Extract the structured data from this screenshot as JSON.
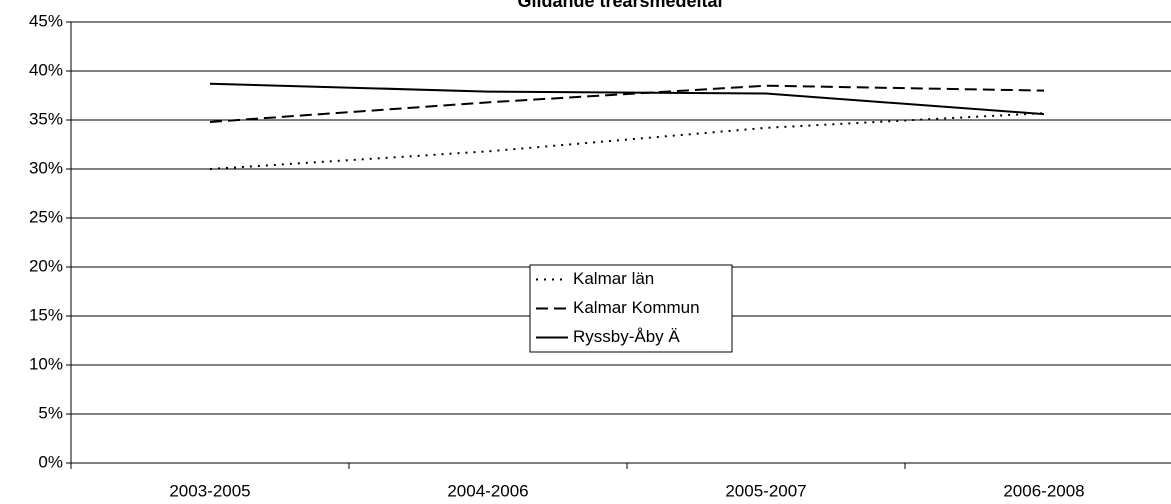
{
  "chart_data": {
    "type": "line",
    "title": "Glidande treårsmedeltal",
    "categories": [
      "2003-2005",
      "2004-2006",
      "2005-2007",
      "2006-2008"
    ],
    "series": [
      {
        "name": "Kalmar län",
        "color": "#000000",
        "dash": "dotted",
        "values": [
          30.0,
          31.8,
          34.2,
          35.7
        ]
      },
      {
        "name": "Kalmar Kommun",
        "color": "#000000",
        "dash": "dashed",
        "values": [
          34.8,
          36.8,
          38.5,
          38.0
        ]
      },
      {
        "name": "Ryssby-Åby  Ä",
        "color": "#000000",
        "dash": "solid",
        "values": [
          38.7,
          37.9,
          37.7,
          35.6
        ]
      }
    ],
    "ylim": [
      0,
      45
    ],
    "yticks": [
      {
        "value": 0,
        "label": "0%"
      },
      {
        "value": 5,
        "label": "5%"
      },
      {
        "value": 10,
        "label": "10%"
      },
      {
        "value": 15,
        "label": "15%"
      },
      {
        "value": 20,
        "label": "20%"
      },
      {
        "value": 25,
        "label": "25%"
      },
      {
        "value": 30,
        "label": "30%"
      },
      {
        "value": 35,
        "label": "35%"
      },
      {
        "value": 40,
        "label": "40%"
      },
      {
        "value": 45,
        "label": "45%"
      }
    ],
    "grid": true,
    "legend": "center"
  }
}
